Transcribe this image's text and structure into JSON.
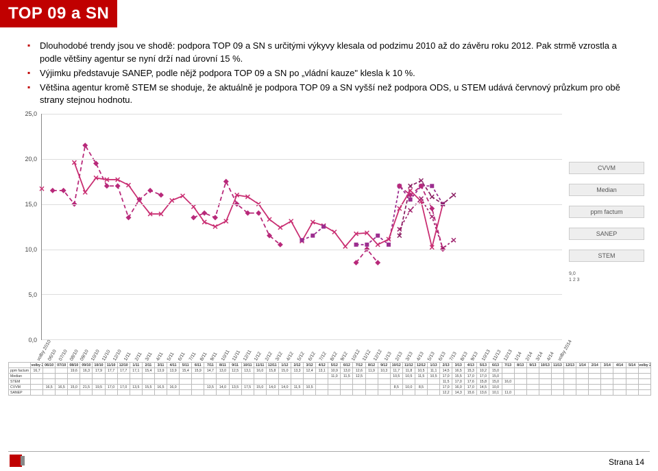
{
  "title": "TOP 09 a SN",
  "bullets": [
    "Dlouhodobé trendy jsou ve shodě: podpora TOP 09 a SN s určitými výkyvy klesala od podzimu 2010 až do závěru roku 2012. Pak strmě vzrostla a podle většiny agentur se nyní drží nad úrovní 15 %.",
    "Výjimku představuje SANEP, podle nějž podpora TOP 09 a SN po „vládní kauze\" klesla k 10 %.",
    "Většina agentur kromě STEM se shoduje, že aktuálně je podpora TOP 09 a SN vyšší než podpora ODS, u STEM udává červnový průzkum pro obě strany stejnou hodnotu."
  ],
  "chart": {
    "ylim": [
      0,
      25
    ],
    "ytick_step": 5,
    "yticks": [
      "0,0",
      "5,0",
      "10,0",
      "15,0",
      "20,0",
      "25,0"
    ],
    "x_categories": [
      "volby 2010",
      "06/10",
      "07/10",
      "08/10",
      "09/10",
      "10/10",
      "11/10",
      "12/10",
      "1/11",
      "2/11",
      "3/11",
      "4/11",
      "5/11",
      "6/11",
      "7/11",
      "8/11",
      "9/11",
      "10/11",
      "11/11",
      "12/11",
      "1/12",
      "2/12",
      "3/12",
      "4/12",
      "5/12",
      "6/12",
      "7/12",
      "8/12",
      "9/12",
      "10/12",
      "11/12",
      "12/12",
      "1/13",
      "2/13",
      "3/13",
      "4/13",
      "5/13",
      "6/13",
      "7/13",
      "8/13",
      "9/13",
      "10/13",
      "11/13",
      "12/13",
      "1/14",
      "2/14",
      "3/14",
      "4/14",
      "volby 2014"
    ],
    "legend": [
      "CVVM",
      "Median",
      "ppm factum",
      "SANEP",
      "STEM"
    ],
    "small_legend_label": "9,0",
    "small_legend_nums": [
      "1",
      "2",
      "3"
    ],
    "colors": {
      "CVVM": "#b8297a",
      "Median": "#9b2d8f",
      "ppm_factum": "#c92e72",
      "SANEP": "#a0246e",
      "STEM": "#8c2366",
      "grid": "#dddddd",
      "axis": "#888888"
    },
    "series": {
      "ppm_factum": [
        16.7,
        null,
        null,
        19.6,
        16.3,
        17.9,
        17.7,
        17.7,
        17.1,
        15.4,
        13.9,
        13.9,
        15.4,
        15.9,
        14.7,
        13.0,
        12.5,
        13.1,
        16.0,
        15.8,
        15.0,
        13.3,
        12.4,
        13.1,
        10.9,
        13.0,
        12.6,
        11.9,
        10.3,
        11.7,
        11.8,
        10.5,
        11.1,
        14.5,
        16.5,
        15.3,
        10.2,
        15.0,
        null,
        null,
        null,
        null,
        null,
        null,
        null,
        null,
        null,
        null,
        null
      ],
      "Median": [
        null,
        null,
        null,
        null,
        null,
        null,
        null,
        null,
        null,
        null,
        null,
        null,
        null,
        null,
        null,
        null,
        null,
        null,
        null,
        null,
        null,
        null,
        null,
        null,
        11.0,
        11.5,
        12.5,
        null,
        null,
        10.5,
        10.5,
        11.5,
        10.5,
        17.0,
        15.5,
        17.0,
        17.0,
        15.0,
        null,
        null,
        null,
        null,
        null,
        null,
        null,
        null,
        null,
        null,
        null
      ],
      "STEM": [
        null,
        null,
        null,
        null,
        null,
        null,
        null,
        null,
        null,
        null,
        null,
        null,
        null,
        null,
        null,
        null,
        null,
        null,
        null,
        null,
        null,
        null,
        null,
        null,
        null,
        null,
        null,
        null,
        null,
        null,
        null,
        null,
        null,
        11.5,
        17.0,
        17.6,
        15.8,
        15.0,
        16.0,
        null,
        null,
        null,
        null,
        null,
        null,
        null,
        null,
        null,
        null
      ],
      "CVVM": [
        null,
        16.5,
        16.5,
        15.0,
        21.5,
        19.5,
        17.0,
        17.0,
        13.5,
        15.5,
        16.5,
        16.0,
        null,
        null,
        13.5,
        14.0,
        13.5,
        17.5,
        15.0,
        14.0,
        14.0,
        11.5,
        10.5,
        null,
        null,
        null,
        null,
        null,
        null,
        8.5,
        10.0,
        8.5,
        null,
        17.0,
        16.0,
        17.0,
        14.5,
        10.0,
        null,
        null,
        null,
        null,
        null,
        null,
        null,
        null,
        null,
        null,
        null
      ],
      "SANEP": [
        null,
        null,
        null,
        null,
        null,
        null,
        null,
        null,
        null,
        null,
        null,
        null,
        null,
        null,
        null,
        null,
        null,
        null,
        null,
        null,
        null,
        null,
        null,
        null,
        null,
        null,
        null,
        null,
        null,
        null,
        null,
        null,
        null,
        12.2,
        14.3,
        15.6,
        13.6,
        10.1,
        11.0,
        null,
        null,
        null,
        null,
        null,
        null,
        null,
        null,
        null,
        null
      ]
    }
  },
  "table": {
    "header_first": "volby 2010",
    "header_last": "volby 2014",
    "periods": [
      "06/10",
      "07/10",
      "08/10",
      "09/10",
      "10/10",
      "11/10",
      "12/10",
      "1/11",
      "2/11",
      "3/11",
      "4/11",
      "5/11",
      "6/11",
      "7/11",
      "8/11",
      "9/11",
      "10/11",
      "11/11",
      "12/11",
      "1/12",
      "2/12",
      "3/12",
      "4/12",
      "5/12",
      "6/12",
      "7/12",
      "8/12",
      "9/12",
      "10/12",
      "11/12",
      "12/12",
      "1/13",
      "2/13",
      "3/13",
      "4/13",
      "5/13",
      "6/13",
      "7/13",
      "8/13",
      "9/13",
      "10/13",
      "11/13",
      "12/13",
      "1/14",
      "2/14",
      "3/14",
      "4/14",
      "5/14"
    ],
    "rows": [
      {
        "name": "ppm factum",
        "first": "16,7",
        "cells": [
          "",
          "",
          "19,6",
          "16,3",
          "17,9",
          "17,7",
          "17,7",
          "17,1",
          "15,4",
          "13,9",
          "13,9",
          "15,4",
          "15,9",
          "14,7",
          "13,0",
          "12,5",
          "13,1",
          "16,0",
          "15,8",
          "15,0",
          "13,3",
          "12,4",
          "13,1",
          "10,9",
          "13,0",
          "12,6",
          "11,9",
          "10,3",
          "11,7",
          "11,8",
          "10,5",
          "11,1",
          "14,5",
          "16,5",
          "15,3",
          "10,2",
          "15,0",
          "",
          "",
          "",
          "",
          "",
          "",
          "",
          "",
          "",
          "",
          ""
        ]
      },
      {
        "name": "Median",
        "first": "",
        "cells": [
          "",
          "",
          "",
          "",
          "",
          "",
          "",
          "",
          "",
          "",
          "",
          "",
          "",
          "",
          "",
          "",
          "",
          "",
          "",
          "",
          "",
          "",
          "",
          "11,0",
          "11,5",
          "12,5",
          "",
          "",
          "10,5",
          "10,5",
          "11,5",
          "10,5",
          "17,0",
          "15,5",
          "17,0",
          "17,0",
          "15,0",
          "",
          "",
          "",
          "",
          "",
          "",
          "",
          "",
          "",
          "",
          ""
        ]
      },
      {
        "name": "STEM",
        "first": "",
        "cells": [
          "",
          "",
          "",
          "",
          "",
          "",
          "",
          "",
          "",
          "",
          "",
          "",
          "",
          "",
          "",
          "",
          "",
          "",
          "",
          "",
          "",
          "",
          "",
          "",
          "",
          "",
          "",
          "",
          "",
          "",
          "",
          "",
          "11,5",
          "17,0",
          "17,6",
          "15,8",
          "15,0",
          "16,0",
          "",
          "",
          "",
          "",
          "",
          "",
          "",
          "",
          "",
          ""
        ]
      },
      {
        "name": "CVVM",
        "first": "",
        "cells": [
          "16,5",
          "16,5",
          "15,0",
          "21,5",
          "19,5",
          "17,0",
          "17,0",
          "13,5",
          "15,5",
          "16,5",
          "16,0",
          "",
          "",
          "13,5",
          "14,0",
          "13,5",
          "17,5",
          "15,0",
          "14,0",
          "14,0",
          "11,5",
          "10,5",
          "",
          "",
          "",
          "",
          "",
          "",
          "8,5",
          "10,0",
          "8,5",
          "",
          "17,0",
          "16,0",
          "17,0",
          "14,5",
          "10,0",
          "",
          "",
          "",
          "",
          "",
          "",
          "",
          "",
          "",
          "",
          ""
        ]
      },
      {
        "name": "SANEP",
        "first": "",
        "cells": [
          "",
          "",
          "",
          "",
          "",
          "",
          "",
          "",
          "",
          "",
          "",
          "",
          "",
          "",
          "",
          "",
          "",
          "",
          "",
          "",
          "",
          "",
          "",
          "",
          "",
          "",
          "",
          "",
          "",
          "",
          "",
          "",
          "12,2",
          "14,3",
          "15,6",
          "13,6",
          "10,1",
          "11,0",
          "",
          "",
          "",
          "",
          "",
          "",
          "",
          "",
          "",
          ""
        ]
      }
    ]
  },
  "footer": "Strana 14"
}
